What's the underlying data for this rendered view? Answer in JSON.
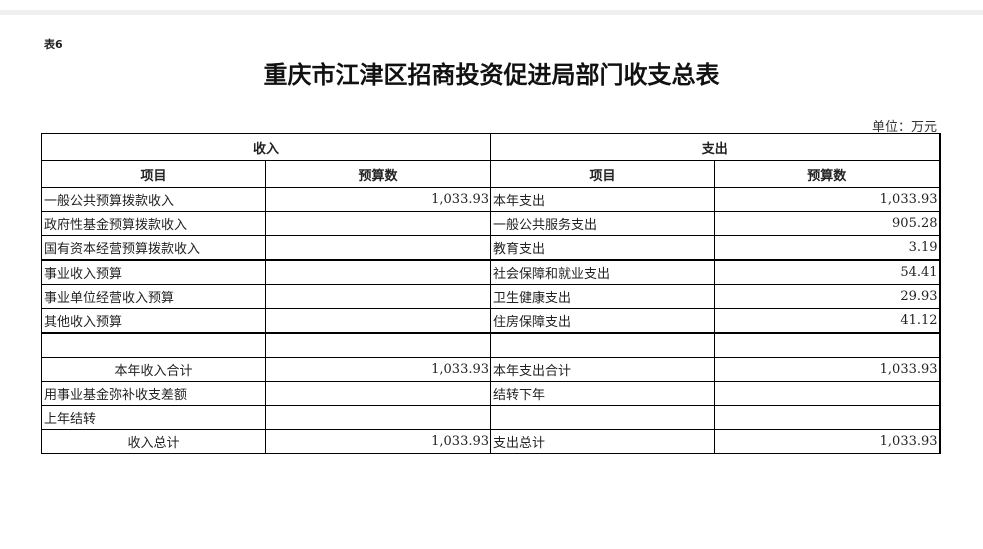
{
  "table_tag": "表6",
  "title": "重庆市江津区招商投资促进局部门收支总表",
  "unit": "单位：万元",
  "headers": {
    "income": "收入",
    "expense": "支出",
    "item": "项目",
    "budget": "预算数"
  },
  "rows": [
    {
      "in_item": "一般公共预算拨款收入",
      "in_val": "1,033.93",
      "ex_item": "本年支出",
      "ex_val": "1,033.93"
    },
    {
      "in_item": "政府性基金预算拨款收入",
      "in_val": "",
      "ex_item": "一般公共服务支出",
      "ex_val": "905.28"
    },
    {
      "in_item": "国有资本经营预算拨款收入",
      "in_val": "",
      "ex_item": "教育支出",
      "ex_val": "3.19"
    },
    {
      "in_item": "事业收入预算",
      "in_val": "",
      "ex_item": "社会保障和就业支出",
      "ex_val": "54.41"
    },
    {
      "in_item": "事业单位经营收入预算",
      "in_val": "",
      "ex_item": "卫生健康支出",
      "ex_val": "29.93"
    },
    {
      "in_item": "其他收入预算",
      "in_val": "",
      "ex_item": "住房保障支出",
      "ex_val": "41.12"
    },
    {
      "in_item": "",
      "in_val": "",
      "ex_item": "",
      "ex_val": ""
    },
    {
      "in_item": "本年收入合计",
      "in_val": "1,033.93",
      "ex_item": "本年支出合计",
      "ex_val": "1,033.93"
    },
    {
      "in_item": "用事业基金弥补收支差额",
      "in_val": "",
      "ex_item": "结转下年",
      "ex_val": ""
    },
    {
      "in_item": "上年结转",
      "in_val": "",
      "ex_item": "",
      "ex_val": ""
    },
    {
      "in_item": "收入总计",
      "in_val": "1,033.93",
      "ex_item": "支出总计",
      "ex_val": "1,033.93"
    }
  ]
}
